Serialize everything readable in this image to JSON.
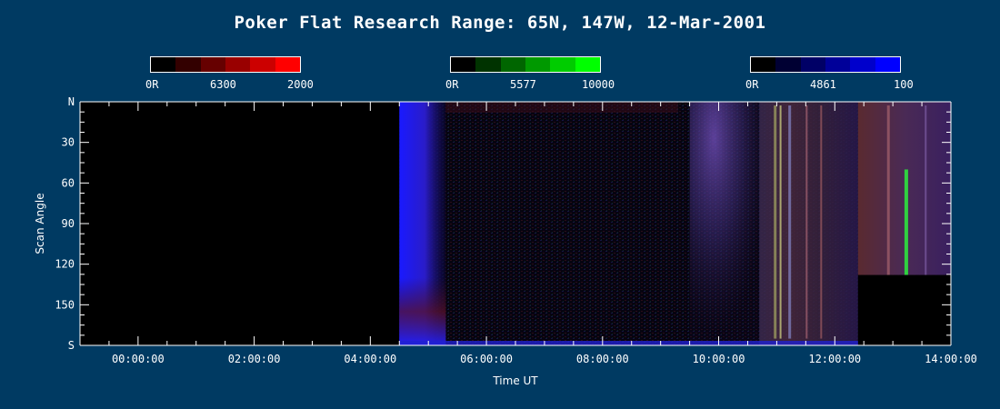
{
  "chart_data": {
    "type": "heatmap",
    "title": "Poker Flat Research Range: 65N, 147W, 12-Mar-2001",
    "xlabel": "Time UT",
    "ylabel": "Scan Angle",
    "x_ticks": [
      "00:00:00",
      "02:00:00",
      "04:00:00",
      "06:00:00",
      "08:00:00",
      "10:00:00",
      "12:00:00",
      "14:00:00"
    ],
    "y_ticks": [
      "N",
      "30",
      "60",
      "90",
      "120",
      "150",
      "S"
    ],
    "xlim_hours": [
      -1.0,
      14.0
    ],
    "ylim_deg": [
      0,
      180
    ],
    "colorbars": [
      {
        "wavelength": "6300",
        "min_label": "0R",
        "max_label": "2000",
        "color": "#ff0000",
        "steps": [
          "#000000",
          "#330000",
          "#660000",
          "#990000",
          "#cc0000",
          "#ff0000"
        ]
      },
      {
        "wavelength": "5577",
        "min_label": "0R",
        "max_label": "10000",
        "color": "#00ff00",
        "steps": [
          "#000000",
          "#003300",
          "#006600",
          "#009900",
          "#00cc00",
          "#00ff00"
        ]
      },
      {
        "wavelength": "4861",
        "min_label": "0R",
        "max_label": "100",
        "color": "#0000ff",
        "steps": [
          "#000000",
          "#000033",
          "#000066",
          "#000099",
          "#0000cc",
          "#0000ff"
        ]
      }
    ],
    "data_coverage": {
      "start_hour": 4.5,
      "end_hour": 14.0,
      "gap_after_hour": 12.4,
      "gap_from_angle": 128
    },
    "features": [
      {
        "label": "blue twilight band",
        "start_hour": 4.5,
        "end_hour": 4.9
      },
      {
        "label": "diffuse violet aurora",
        "start_hour": 9.5,
        "end_hour": 10.7
      },
      {
        "label": "bright arcs",
        "start_hour": 10.9,
        "end_hour": 11.2
      },
      {
        "label": "green arc",
        "start_hour": 13.2,
        "end_hour": 13.3
      }
    ]
  }
}
